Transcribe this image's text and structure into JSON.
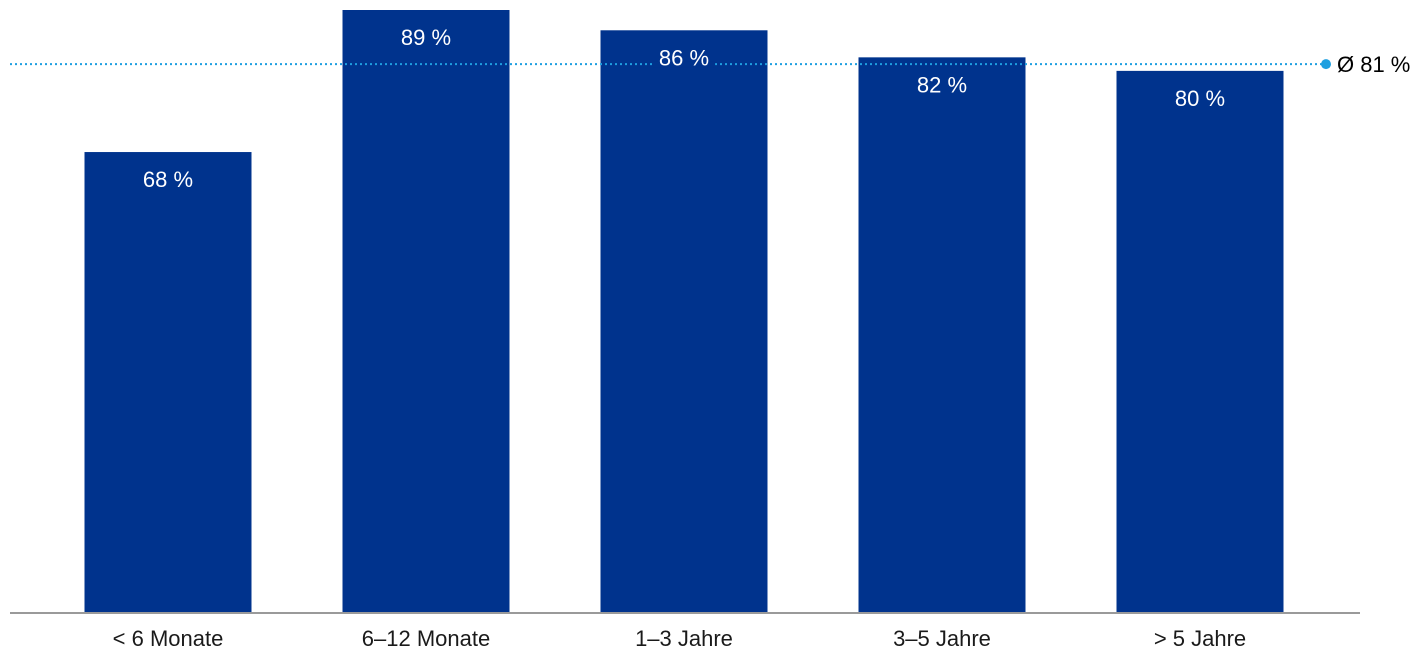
{
  "chart_data": {
    "type": "bar",
    "categories": [
      "< 6 Monate",
      "6–12 Monate",
      "1–3 Jahre",
      "3–5 Jahre",
      "> 5 Jahre"
    ],
    "values": [
      68,
      89,
      86,
      82,
      80
    ],
    "value_labels": [
      "68 %",
      "89 %",
      "86 %",
      "82 %",
      "80 %"
    ],
    "unit": "%",
    "ylim": [
      0,
      89
    ],
    "grid": false,
    "reference_line": {
      "value": 81,
      "label": "Ø 81 %",
      "style": "dotted"
    },
    "colors": {
      "bar": "#00338D",
      "reference_line": "#1E9FE0",
      "axis": "#9A9A9A"
    }
  }
}
